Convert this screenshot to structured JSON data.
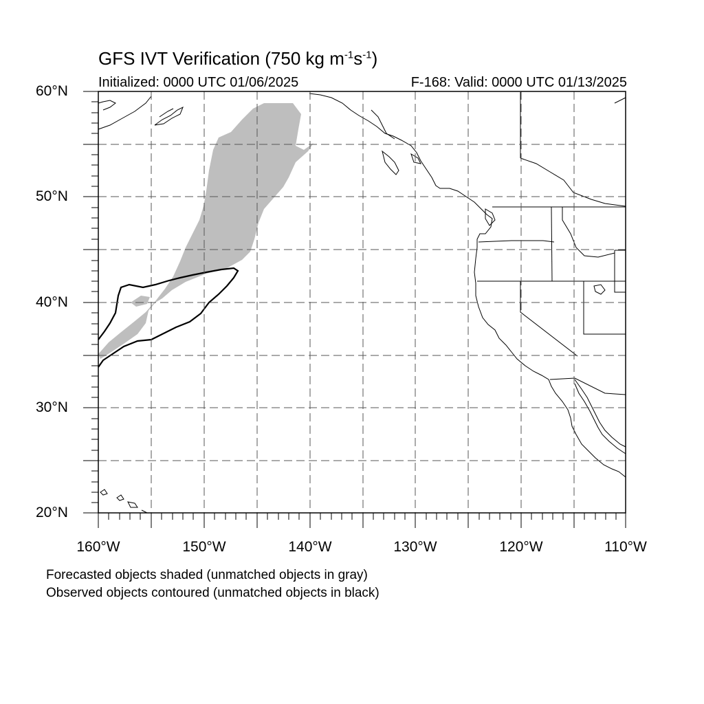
{
  "header": {
    "title_main": "GFS IVT Verification (750 kg m",
    "title_exp1": "-1",
    "title_mid": "s",
    "title_exp2": "-1",
    "title_end": ")",
    "initialized": "Initialized: 0000 UTC 01/06/2025",
    "valid": "F-168: Valid: 0000 UTC 01/13/2025"
  },
  "axes": {
    "lat_labels": [
      "60°N",
      "50°N",
      "40°N",
      "30°N",
      "20°N"
    ],
    "lon_labels": [
      "160°W",
      "150°W",
      "140°W",
      "130°W",
      "120°W",
      "110°W"
    ]
  },
  "footer": {
    "note_forecast": "Forecasted objects shaded (unmatched objects in gray)",
    "note_observed": "Observed objects contoured (unmatched objects in black)"
  },
  "map": {
    "extent": {
      "lon_min": -160,
      "lon_max": -110,
      "lat_min": 20,
      "lat_max": 60
    },
    "gridlines": "dashed every 5 degrees",
    "forecast_fill_color": "#bebebe",
    "observed_contour_color": "#000000"
  }
}
